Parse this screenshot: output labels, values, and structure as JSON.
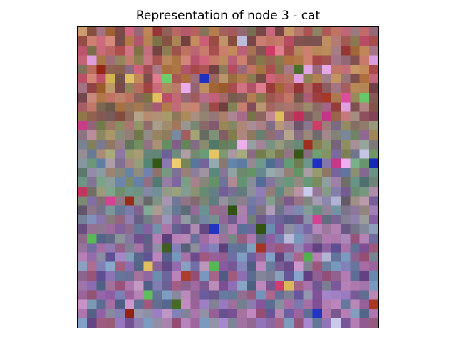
{
  "figure": {
    "title": "Representation of node 3 - cat"
  },
  "image": {
    "grid_size": 32,
    "seed": 3,
    "palette": {
      "top": [
        "#b35a5a",
        "#c97b6b",
        "#8f5a4a",
        "#a86a3a",
        "#c45870",
        "#9b6b7a",
        "#b88050",
        "#7d4a4a",
        "#d07080",
        "#a04040",
        "#8a7a50",
        "#c09060"
      ],
      "middle": [
        "#7a8a5a",
        "#6a9a6a",
        "#8a7a9a",
        "#9aa070",
        "#5a8a7a",
        "#7a6aa0",
        "#a0909a",
        "#6aa07a",
        "#8aa0a0",
        "#9a8070",
        "#70a070",
        "#5a7aa0"
      ],
      "bottom": [
        "#8a5aa0",
        "#6a5aa0",
        "#a06aa0",
        "#7a7ab0",
        "#9a7ac0",
        "#5a6a90",
        "#b07ab0",
        "#8a8aa0",
        "#c08ac0",
        "#6a4a8a",
        "#a05a80",
        "#7a9ac0"
      ]
    },
    "accent_colors": [
      "#c0305a",
      "#d04090",
      "#2030c0",
      "#60c060",
      "#e0a0e0",
      "#c0c0e0",
      "#e0c060",
      "#a03020",
      "#406020"
    ]
  }
}
